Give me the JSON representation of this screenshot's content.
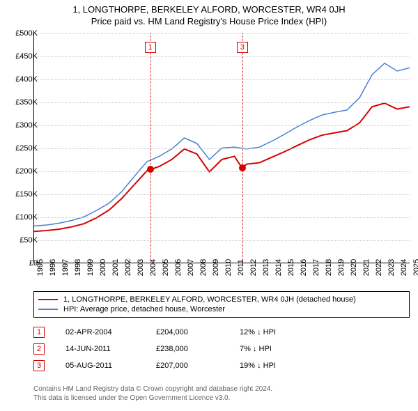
{
  "title_line1": "1, LONGTHORPE, BERKELEY ALFORD, WORCESTER, WR4 0JH",
  "title_line2": "Price paid vs. HM Land Registry's House Price Index (HPI)",
  "chart": {
    "type": "line",
    "background_color": "#ffffff",
    "grid_color": "#c8c8c8",
    "axis_color": "#000000",
    "xlim": [
      1995,
      2025
    ],
    "ylim": [
      0,
      500000
    ],
    "ytick_step": 50000,
    "yticks": [
      "£0",
      "£50K",
      "£100K",
      "£150K",
      "£200K",
      "£250K",
      "£300K",
      "£350K",
      "£400K",
      "£450K",
      "£500K"
    ],
    "xticks": [
      "1995",
      "1996",
      "1997",
      "1998",
      "1999",
      "2000",
      "2001",
      "2002",
      "2003",
      "2004",
      "2005",
      "2006",
      "2007",
      "2008",
      "2009",
      "2010",
      "2011",
      "2012",
      "2013",
      "2014",
      "2015",
      "2016",
      "2017",
      "2018",
      "2019",
      "2020",
      "2021",
      "2022",
      "2023",
      "2024",
      "2025"
    ],
    "series": [
      {
        "name": "1, LONGTHORPE, BERKELEY ALFORD, WORCESTER, WR4 0JH (detached house)",
        "color": "#d40000",
        "line_width": 2,
        "data": [
          [
            1995,
            68000
          ],
          [
            1996,
            70000
          ],
          [
            1997,
            73000
          ],
          [
            1998,
            78000
          ],
          [
            1999,
            85000
          ],
          [
            2000,
            98000
          ],
          [
            2001,
            115000
          ],
          [
            2002,
            140000
          ],
          [
            2003,
            170000
          ],
          [
            2004,
            200000
          ],
          [
            2005,
            210000
          ],
          [
            2006,
            225000
          ],
          [
            2007,
            248000
          ],
          [
            2008,
            237000
          ],
          [
            2009,
            198000
          ],
          [
            2010,
            225000
          ],
          [
            2011,
            232000
          ],
          [
            2011.6,
            207000
          ],
          [
            2012,
            215000
          ],
          [
            2013,
            218000
          ],
          [
            2014,
            230000
          ],
          [
            2015,
            242000
          ],
          [
            2016,
            255000
          ],
          [
            2017,
            268000
          ],
          [
            2018,
            278000
          ],
          [
            2019,
            283000
          ],
          [
            2020,
            288000
          ],
          [
            2021,
            305000
          ],
          [
            2022,
            340000
          ],
          [
            2023,
            348000
          ],
          [
            2024,
            335000
          ],
          [
            2025,
            340000
          ]
        ]
      },
      {
        "name": "HPI: Average price, detached house, Worcester",
        "color": "#4a7fd4",
        "line_width": 1.5,
        "data": [
          [
            1995,
            80000
          ],
          [
            1996,
            82000
          ],
          [
            1997,
            86000
          ],
          [
            1998,
            92000
          ],
          [
            1999,
            100000
          ],
          [
            2000,
            114000
          ],
          [
            2001,
            130000
          ],
          [
            2002,
            155000
          ],
          [
            2003,
            188000
          ],
          [
            2004,
            220000
          ],
          [
            2005,
            232000
          ],
          [
            2006,
            248000
          ],
          [
            2007,
            272000
          ],
          [
            2008,
            260000
          ],
          [
            2009,
            225000
          ],
          [
            2010,
            250000
          ],
          [
            2011,
            252000
          ],
          [
            2012,
            248000
          ],
          [
            2013,
            252000
          ],
          [
            2014,
            265000
          ],
          [
            2015,
            280000
          ],
          [
            2016,
            296000
          ],
          [
            2017,
            310000
          ],
          [
            2018,
            322000
          ],
          [
            2019,
            328000
          ],
          [
            2020,
            333000
          ],
          [
            2021,
            360000
          ],
          [
            2022,
            410000
          ],
          [
            2023,
            435000
          ],
          [
            2024,
            418000
          ],
          [
            2025,
            425000
          ]
        ]
      }
    ],
    "events": [
      {
        "n": "1",
        "x": 2004.25,
        "price": 204000,
        "color": "#d40000"
      },
      {
        "n": "2",
        "x": 2011.45,
        "price": 238000,
        "color": "#d40000"
      },
      {
        "n": "3",
        "x": 2011.6,
        "price": 207000,
        "color": "#d40000"
      }
    ],
    "events_shown_on_chart": [
      "1",
      "3"
    ]
  },
  "legend": {
    "items": [
      {
        "color": "#d40000",
        "label": "1, LONGTHORPE, BERKELEY ALFORD, WORCESTER, WR4 0JH (detached house)"
      },
      {
        "color": "#4a7fd4",
        "label": "HPI: Average price, detached house, Worcester"
      }
    ]
  },
  "events_table": [
    {
      "n": "1",
      "color": "#d40000",
      "date": "02-APR-2004",
      "price": "£204,000",
      "pct": "12% ↓ HPI"
    },
    {
      "n": "2",
      "color": "#d40000",
      "date": "14-JUN-2011",
      "price": "£238,000",
      "pct": "7% ↓ HPI"
    },
    {
      "n": "3",
      "color": "#d40000",
      "date": "05-AUG-2011",
      "price": "£207,000",
      "pct": "19% ↓ HPI"
    }
  ],
  "footer_line1": "Contains HM Land Registry data © Crown copyright and database right 2024.",
  "footer_line2": "This data is licensed under the Open Government Licence v3.0."
}
